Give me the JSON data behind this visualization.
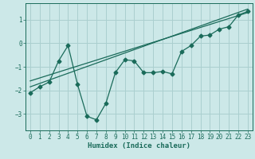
{
  "xlabel": "Humidex (Indice chaleur)",
  "ylabel": "",
  "background_color": "#cce8e8",
  "grid_color": "#aacfcf",
  "line_color": "#1a6b5a",
  "xlim": [
    -0.5,
    23.5
  ],
  "ylim": [
    -3.7,
    1.7
  ],
  "yticks": [
    -3,
    -2,
    -1,
    0,
    1
  ],
  "xticks": [
    0,
    1,
    2,
    3,
    4,
    5,
    6,
    7,
    8,
    9,
    10,
    11,
    12,
    13,
    14,
    15,
    16,
    17,
    18,
    19,
    20,
    21,
    22,
    23
  ],
  "data_x": [
    0,
    1,
    2,
    3,
    4,
    5,
    6,
    7,
    8,
    9,
    10,
    11,
    12,
    13,
    14,
    15,
    16,
    17,
    18,
    19,
    20,
    21,
    22,
    23
  ],
  "data_y": [
    -2.1,
    -1.85,
    -1.65,
    -0.75,
    -0.1,
    -1.75,
    -3.1,
    -3.25,
    -2.55,
    -1.25,
    -0.7,
    -0.75,
    -1.25,
    -1.25,
    -1.2,
    -1.3,
    -0.35,
    -0.1,
    0.3,
    0.35,
    0.6,
    0.7,
    1.2,
    1.35
  ],
  "trend1_x": [
    0,
    23
  ],
  "trend1_y": [
    -1.85,
    1.45
  ],
  "trend2_x": [
    0,
    23
  ],
  "trend2_y": [
    -1.6,
    1.3
  ]
}
